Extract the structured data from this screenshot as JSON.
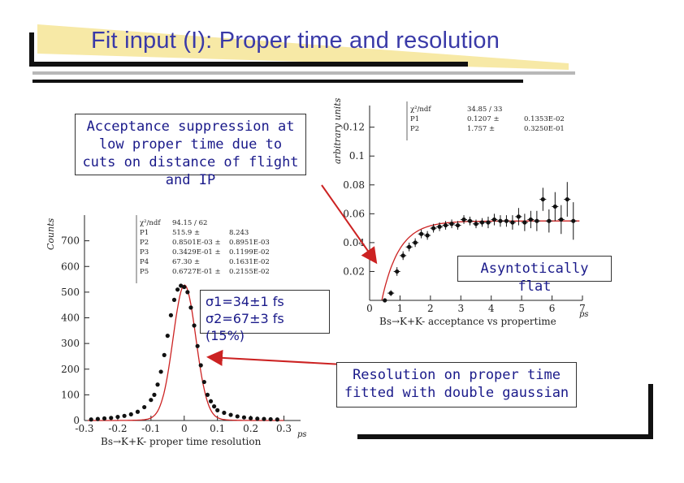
{
  "slide": {
    "title": "Fit input (I): Proper time and resolution",
    "callout_acceptance": "Acceptance suppression at low proper time due to cuts on distance of flight and IP",
    "callout_flat": "Asyntotically flat",
    "callout_resolution": "Resolution on proper time fitted with double gaussian",
    "sigma1": "σ1=34±1 fs",
    "sigma2": "σ2=67±3 fs (15%)"
  },
  "colors": {
    "title": "#3a3aa8",
    "callout_text": "#1a1a8a",
    "fit_curve": "#cc2222",
    "banner": "#f7e9a6"
  },
  "chart_data": [
    {
      "type": "scatter",
      "title": "",
      "xlabel": "Bs→K+K- acceptance vs propertime",
      "x_unit": "ps",
      "ylabel": "arbitrary units",
      "xlim": [
        0,
        7
      ],
      "ylim": [
        0,
        0.135
      ],
      "xticks": [
        0,
        1,
        2,
        3,
        4,
        5,
        6,
        7
      ],
      "yticks": [
        0.02,
        0.04,
        0.06,
        0.08,
        0.1,
        0.12
      ],
      "ytick_labels": [
        "0.02",
        "0.04",
        "0.06",
        "0.08",
        "0.1",
        "0.12"
      ],
      "stats": [
        [
          "χ²/ndf",
          "34.85 / 33",
          ""
        ],
        [
          "P1",
          "0.1207 ±",
          "0.1353E-02"
        ],
        [
          "P2",
          "1.757 ±",
          "0.3250E-01"
        ]
      ],
      "series": [
        {
          "x": [
            0.5,
            0.7,
            0.9,
            1.1,
            1.3,
            1.5,
            1.7,
            1.9,
            2.1,
            2.3,
            2.5,
            2.7,
            2.9,
            3.1,
            3.3,
            3.5,
            3.7,
            3.9,
            4.1,
            4.3,
            4.5,
            4.7,
            4.9,
            5.1,
            5.3,
            5.5,
            5.7,
            5.9,
            6.1,
            6.3,
            6.5,
            6.7
          ],
          "y": [
            0.0,
            0.005,
            0.02,
            0.031,
            0.037,
            0.04,
            0.046,
            0.045,
            0.05,
            0.051,
            0.052,
            0.053,
            0.052,
            0.056,
            0.055,
            0.053,
            0.054,
            0.054,
            0.056,
            0.055,
            0.055,
            0.054,
            0.058,
            0.054,
            0.056,
            0.055,
            0.07,
            0.055,
            0.065,
            0.056,
            0.07,
            0.055
          ],
          "err": [
            0.001,
            0.002,
            0.003,
            0.003,
            0.003,
            0.003,
            0.003,
            0.003,
            0.003,
            0.003,
            0.003,
            0.003,
            0.003,
            0.003,
            0.003,
            0.003,
            0.003,
            0.004,
            0.004,
            0.004,
            0.004,
            0.005,
            0.006,
            0.006,
            0.006,
            0.007,
            0.008,
            0.008,
            0.01,
            0.01,
            0.012,
            0.013
          ]
        }
      ]
    },
    {
      "type": "scatter",
      "title": "",
      "xlabel": "Bs→K+K- proper time resolution",
      "x_unit": "ps",
      "ylabel": "Counts",
      "xlim": [
        -0.3,
        0.35
      ],
      "ylim": [
        0,
        800
      ],
      "xticks": [
        -0.3,
        -0.2,
        -0.1,
        0,
        0.1,
        0.2,
        0.3
      ],
      "xtick_labels": [
        "-0.3",
        "-0.2",
        "-0.1",
        "0",
        "0.1",
        "0.2",
        "0.3"
      ],
      "yticks": [
        0,
        100,
        200,
        300,
        400,
        500,
        600,
        700
      ],
      "stats": [
        [
          "χ²/ndf",
          "94.15 / 62",
          ""
        ],
        [
          "P1",
          "515.9 ±",
          "8.243"
        ],
        [
          "P2",
          "0.8501E-03 ±",
          "0.8951E-03"
        ],
        [
          "P3",
          "0.3429E-01 ±",
          "0.1199E-02"
        ],
        [
          "P4",
          "67.30 ±",
          "0.1631E-02"
        ],
        [
          "P5",
          "0.6727E-01 ±",
          "0.2155E-02"
        ]
      ],
      "series": [
        {
          "x": [
            -0.28,
            -0.26,
            -0.24,
            -0.22,
            -0.2,
            -0.18,
            -0.16,
            -0.14,
            -0.12,
            -0.1,
            -0.09,
            -0.08,
            -0.07,
            -0.06,
            -0.05,
            -0.04,
            -0.03,
            -0.02,
            -0.01,
            0,
            0.01,
            0.02,
            0.03,
            0.04,
            0.05,
            0.06,
            0.07,
            0.08,
            0.09,
            0.1,
            0.12,
            0.14,
            0.16,
            0.18,
            0.2,
            0.22,
            0.24,
            0.26,
            0.28
          ],
          "y": [
            4,
            6,
            8,
            10,
            14,
            18,
            24,
            34,
            52,
            80,
            100,
            140,
            190,
            255,
            330,
            410,
            470,
            510,
            525,
            520,
            500,
            440,
            370,
            290,
            215,
            150,
            100,
            75,
            55,
            40,
            30,
            22,
            16,
            12,
            9,
            7,
            6,
            5,
            4
          ]
        }
      ]
    }
  ]
}
